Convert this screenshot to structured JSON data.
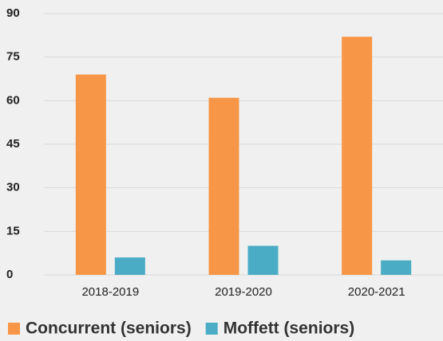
{
  "chart_data": {
    "type": "bar",
    "categories": [
      "2018-2019",
      "2019-2020",
      "2020-2021"
    ],
    "series": [
      {
        "name": "Concurrent (seniors)",
        "color": "#f79646",
        "values": [
          69,
          61,
          82
        ]
      },
      {
        "name": "Moffett (seniors)",
        "color": "#4bacc6",
        "values": [
          6,
          10,
          5
        ]
      }
    ],
    "ylim": [
      0,
      90
    ],
    "yticks": [
      0,
      15,
      30,
      45,
      60,
      75,
      90
    ],
    "grid": true,
    "legend": "bottom"
  }
}
